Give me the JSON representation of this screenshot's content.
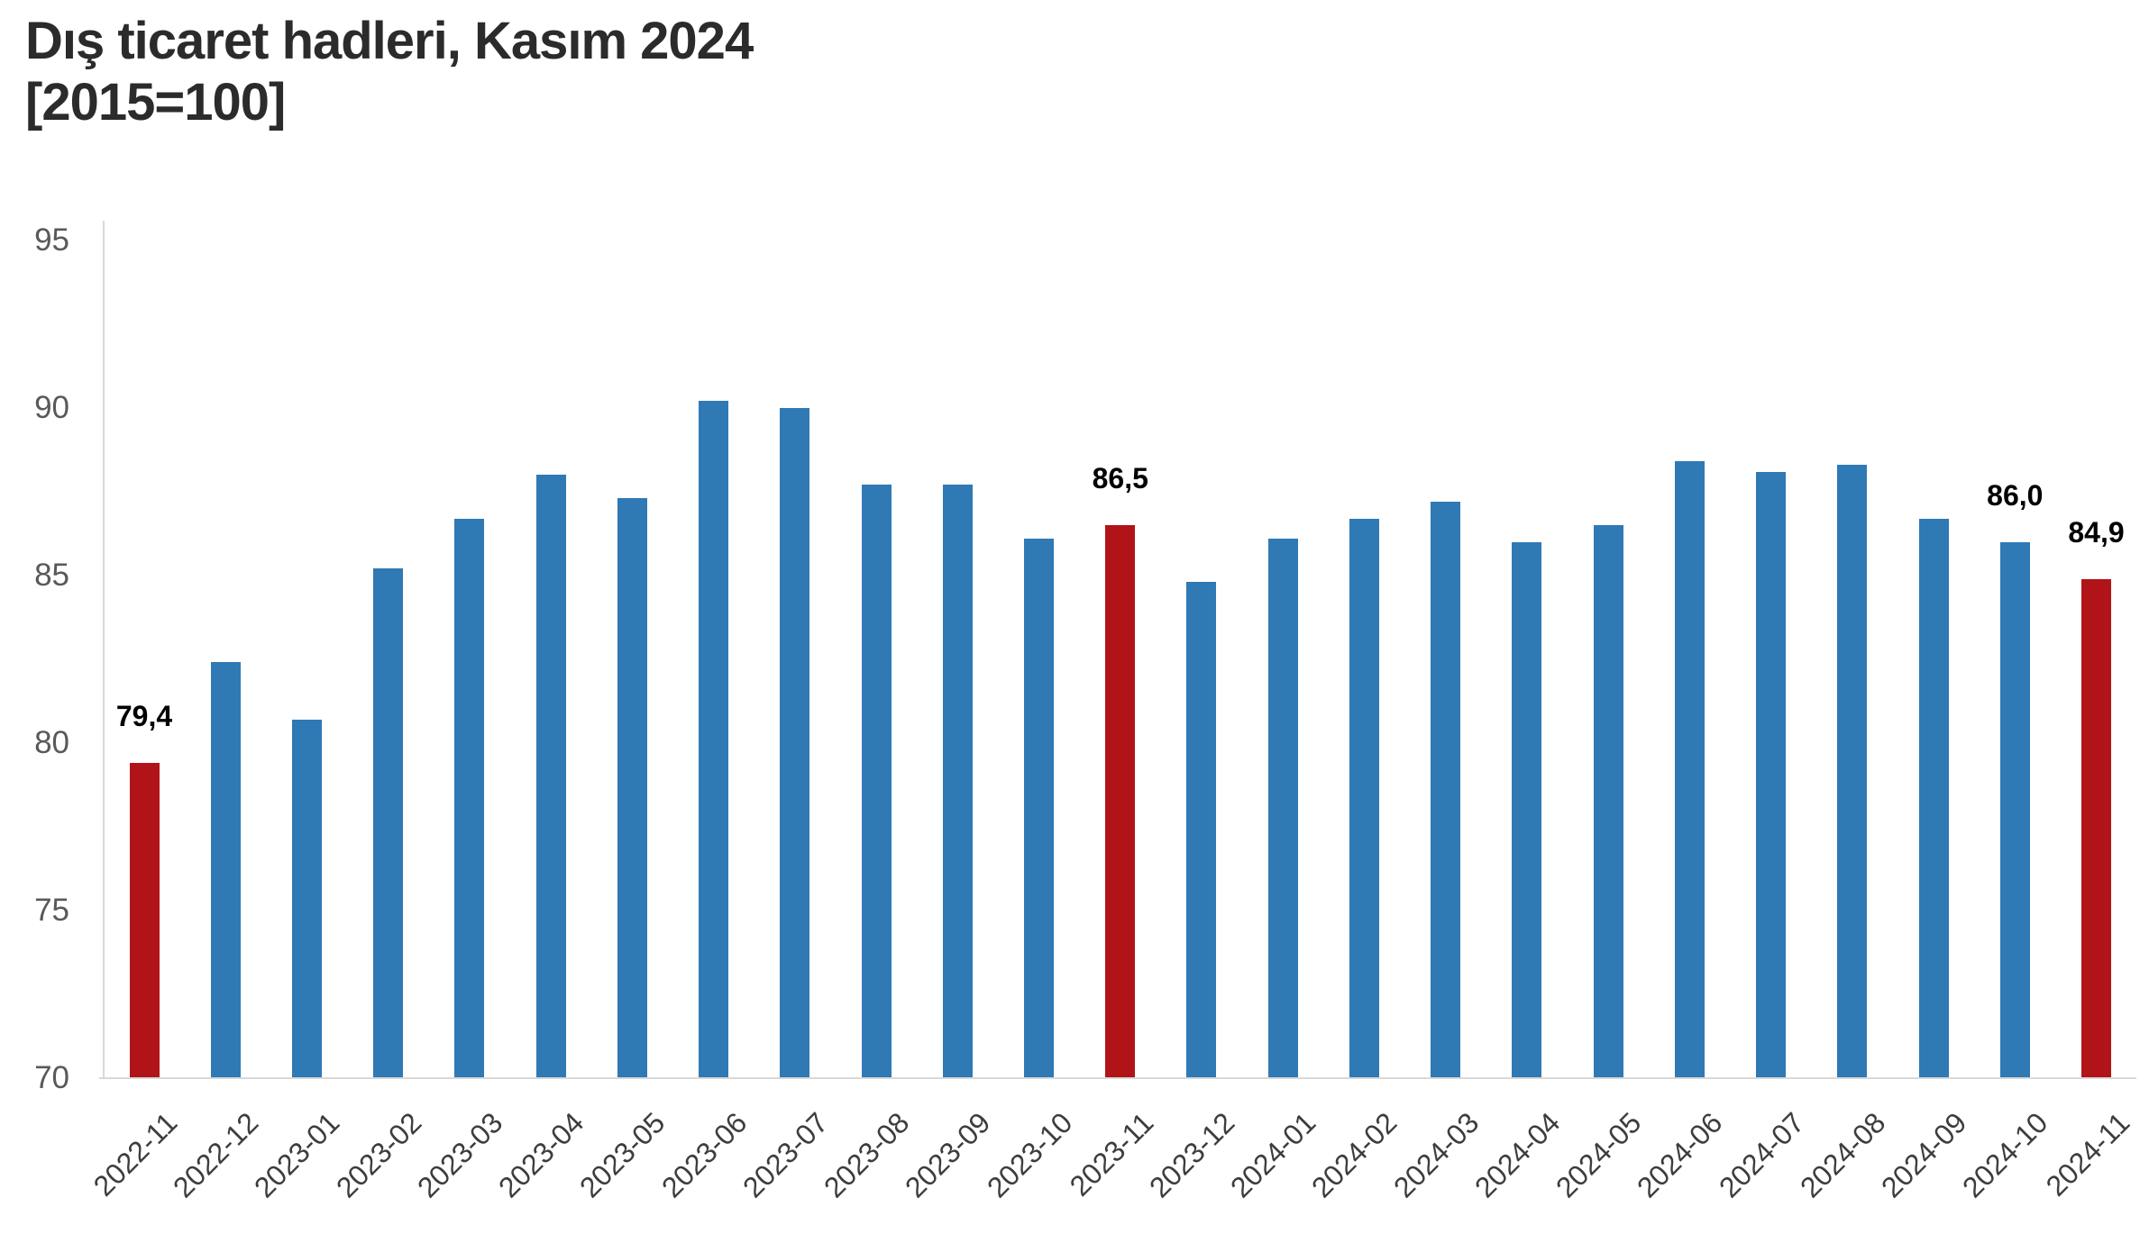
{
  "title": {
    "line1": "Dış ticaret hadleri, Kasım 2024",
    "line2": "[2015=100]"
  },
  "chart_data": {
    "type": "bar",
    "title": "Dış ticaret hadleri, Kasım 2024 [2015=100]",
    "xlabel": "",
    "ylabel": "",
    "categories": [
      "2022-11",
      "2022-12",
      "2023-01",
      "2023-02",
      "2023-03",
      "2023-04",
      "2023-05",
      "2023-06",
      "2023-07",
      "2023-08",
      "2023-09",
      "2023-10",
      "2023-11",
      "2023-12",
      "2024-01",
      "2024-02",
      "2024-03",
      "2024-04",
      "2024-05",
      "2024-06",
      "2024-07",
      "2024-08",
      "2024-09",
      "2024-10",
      "2024-11"
    ],
    "values": [
      79.4,
      82.4,
      80.7,
      85.2,
      86.7,
      88.0,
      87.3,
      90.2,
      90.0,
      87.7,
      87.7,
      86.1,
      86.5,
      84.8,
      86.1,
      86.7,
      87.2,
      86.0,
      86.5,
      88.4,
      88.1,
      88.3,
      86.7,
      86.0,
      84.9
    ],
    "ylim": [
      70,
      95
    ],
    "yticks": [
      95,
      90,
      85,
      80,
      75,
      70
    ],
    "grid": false,
    "legend": false,
    "decimal_separator": ",",
    "highlight_indices": [
      0,
      12,
      24
    ],
    "point_labels": [
      {
        "index": 0,
        "text": "79,4"
      },
      {
        "index": 12,
        "text": "86,5"
      },
      {
        "index": 23,
        "text": "86,0"
      },
      {
        "index": 24,
        "text": "84,9"
      }
    ],
    "colors": {
      "bar": "#2f79b5",
      "highlight": "#b11418",
      "axis_line": "#d9d9d9",
      "ytick_text": "#595959",
      "xtick_text": "#3d3d3d",
      "point_label_text": "#000000",
      "title_text": "#2b2b2b",
      "background": "#ffffff"
    }
  }
}
